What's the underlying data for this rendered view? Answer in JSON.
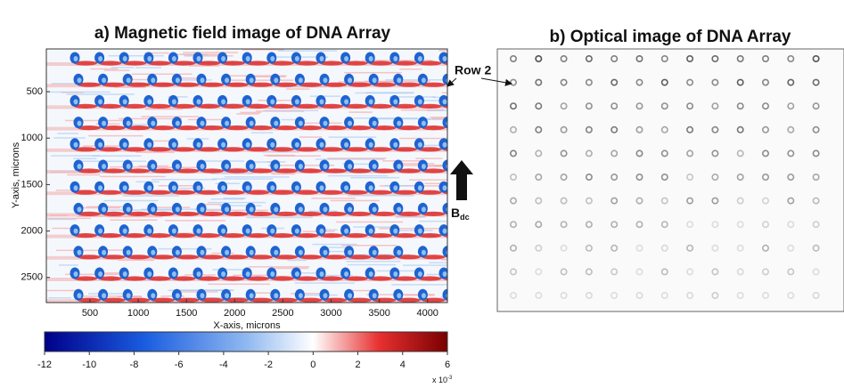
{
  "panel_a": {
    "title": "a) Magnetic field image of DNA Array",
    "x_label": "X-axis, microns",
    "y_label": "Y-axis, microns",
    "x_ticks": [
      "500",
      "1000",
      "1500",
      "2000",
      "2500",
      "3000",
      "3500",
      "4000"
    ],
    "y_ticks": [
      "500",
      "1000",
      "1500",
      "2000",
      "2500"
    ],
    "colorbar": {
      "ticks": [
        "-12",
        "-10",
        "-8",
        "-6",
        "-4",
        "-2",
        "0",
        "2",
        "4",
        "6"
      ],
      "multiplier": "x 10",
      "exponent": "-3"
    }
  },
  "panel_b": {
    "title": "b) Optical image of DNA Array"
  },
  "annotations": {
    "row_label": "Row 2",
    "field_label": "B",
    "field_subscript": "dc"
  }
}
